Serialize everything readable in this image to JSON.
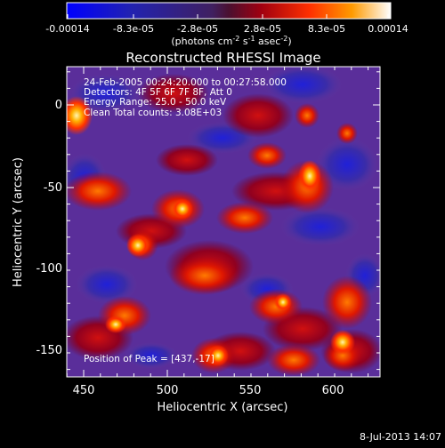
{
  "colorbar": {
    "tick_labels": [
      "-0.00014",
      "-8.3e-05",
      "-2.8e-05",
      "2.8e-05",
      "8.3e-05",
      "0.00014"
    ],
    "units_prefix": "(photons cm",
    "units_exp1": "-2",
    "units_mid": " s",
    "units_exp2": "-1",
    "units_mid2": " asec",
    "units_exp3": "-2",
    "units_suffix": ")"
  },
  "title": "Reconstructed RHESSI Image",
  "annotations": {
    "line1": "24-Feb-2005 00:24:20.000 to 00:27:58.000",
    "line2": "Detectors: 4F 5F 6F 7F 8F, Att 0",
    "line3": "Energy Range: 25.0 - 50.0 keV",
    "line4": "Clean     Total counts: 3.08E+03",
    "peak": "Position of Peak = [437,-17]"
  },
  "axes": {
    "xlabel": "Heliocentric X (arcsec)",
    "ylabel": "Heliocentric Y (arcsec)",
    "x_ticks": [
      "450",
      "500",
      "550",
      "600"
    ],
    "y_ticks": [
      "0",
      "-50",
      "-100",
      "-150"
    ]
  },
  "timestamp": "8-Jul-2013 14:07"
}
